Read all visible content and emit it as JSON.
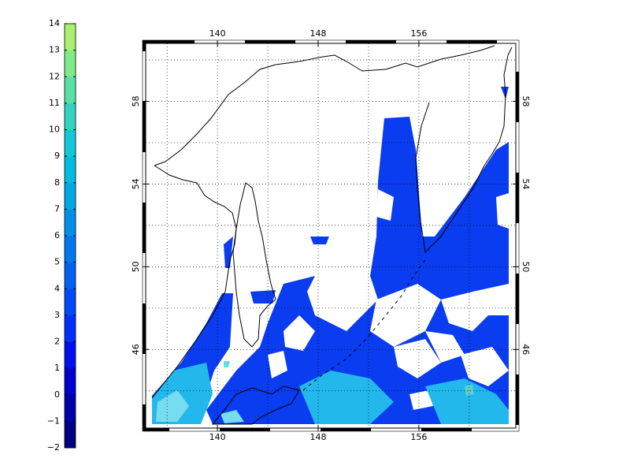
{
  "colorbar": {
    "lim": [
      -2,
      14
    ],
    "ticks": [
      {
        "value": -2,
        "label": "−2"
      },
      {
        "value": -1,
        "label": "−1"
      },
      0,
      1,
      2,
      3,
      4,
      5,
      6,
      7,
      8,
      9,
      10,
      11,
      12,
      13,
      14
    ],
    "colors": [
      "#000080",
      "#0000a8",
      "#0000d0",
      "#0010f0",
      "#0030ff",
      "#0048f8",
      "#0060f0",
      "#0078ec",
      "#0090e8",
      "#00a8e4",
      "#00bce0",
      "#10c8d8",
      "#30d4c0",
      "#58e0a4",
      "#80ea88",
      "#a8f070"
    ]
  },
  "map": {
    "lonlim": [
      134.3,
      163.7
    ],
    "latlim": [
      42.2,
      60.8
    ],
    "lon_ticks": [
      140,
      148,
      156
    ],
    "lat_ticks": [
      46,
      50,
      54,
      58
    ],
    "lon_grid": [
      136,
      140,
      144,
      148,
      152,
      156,
      160
    ],
    "lat_grid": [
      44,
      46,
      48,
      50,
      52,
      54,
      56,
      58,
      60
    ]
  }
}
